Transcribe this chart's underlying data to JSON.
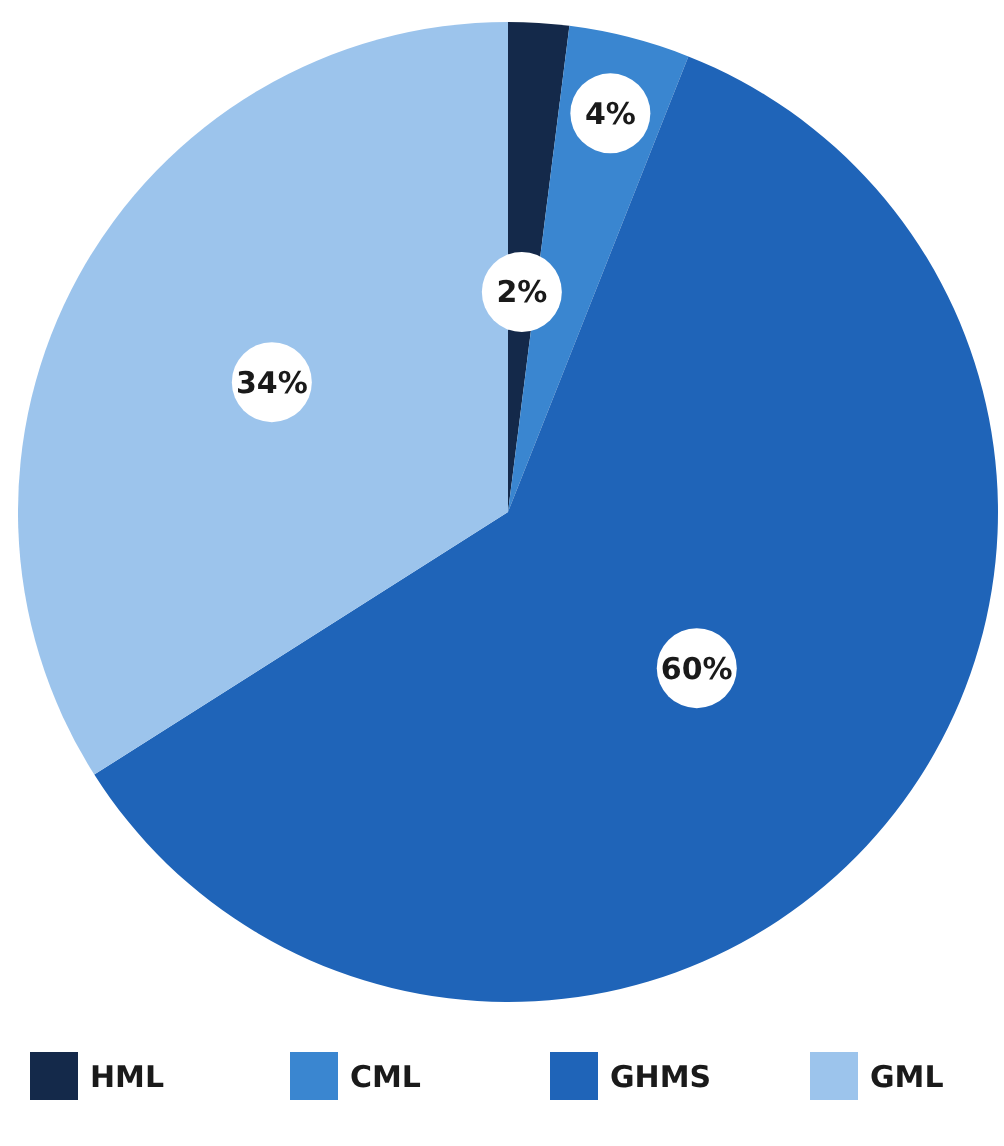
{
  "chart_data": {
    "type": "pie",
    "categories": [
      "HML",
      "CML",
      "GHMS",
      "GML"
    ],
    "values": [
      2,
      4,
      60,
      34
    ],
    "colors": [
      "#14294a",
      "#3a86d0",
      "#1f64b8",
      "#9cc4ec"
    ],
    "value_labels": [
      "2%",
      "4%",
      "60%",
      "34%"
    ],
    "legend": "bottom"
  }
}
